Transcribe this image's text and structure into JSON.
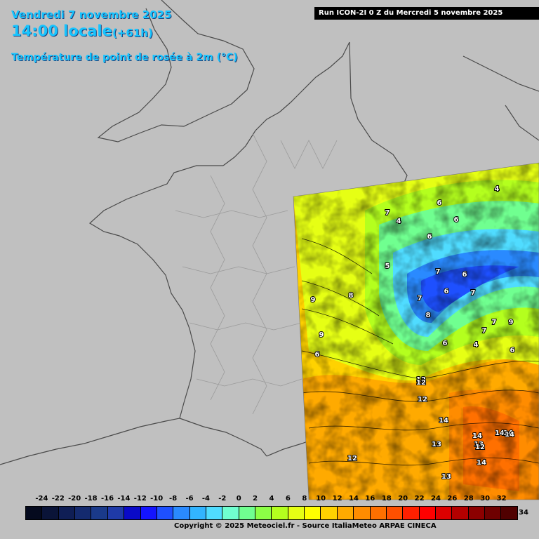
{
  "header": {
    "date": "Vendredi 7 novembre 2025",
    "time": "14:00 locale",
    "lead": "(+61h)",
    "parameter": "Température de point de rosée à 2m (°C)",
    "run": "Run ICON-2I 0 Z du Mercredi 5 novembre 2025"
  },
  "legend": {
    "ticks": [
      "-24",
      "-22",
      "-20",
      "-18",
      "-16",
      "-14",
      "-12",
      "-10",
      "-8",
      "-6",
      "-4",
      "-2",
      "0",
      "2",
      "4",
      "6",
      "8",
      "10",
      "12",
      "14",
      "16",
      "18",
      "20",
      "22",
      "24",
      "26",
      "28",
      "30",
      "32"
    ],
    "last_label": "34",
    "colors": [
      "#050a1e",
      "#0a1438",
      "#0f1e55",
      "#142a6e",
      "#1a3a8a",
      "#1f3aa8",
      "#0a0ac8",
      "#1414ff",
      "#1e50ff",
      "#2a8aff",
      "#32b4ff",
      "#50dcff",
      "#70ffd0",
      "#70ff90",
      "#8cff46",
      "#b4ff1e",
      "#e6ff14",
      "#ffff00",
      "#ffd200",
      "#ffaa00",
      "#ff8c00",
      "#ff7000",
      "#ff5000",
      "#ff2000",
      "#ff0000",
      "#dc0000",
      "#b40000",
      "#8c0000",
      "#6e0000",
      "#500000"
    ]
  },
  "copyright": "Copyright © 2025 Meteociel.fr - Source ItaliaMeteo ARPAE CINECA",
  "contour_labels": [
    "4",
    "6",
    "7",
    "4",
    "6",
    "6",
    "5",
    "7",
    "7",
    "8",
    "9",
    "6",
    "7",
    "6",
    "7",
    "9",
    "7",
    "8",
    "6",
    "4",
    "6",
    "9",
    "6",
    "12",
    "12",
    "14",
    "13",
    "12",
    "14",
    "13",
    "14",
    "14",
    "13",
    "12",
    "14",
    "12",
    "14"
  ]
}
